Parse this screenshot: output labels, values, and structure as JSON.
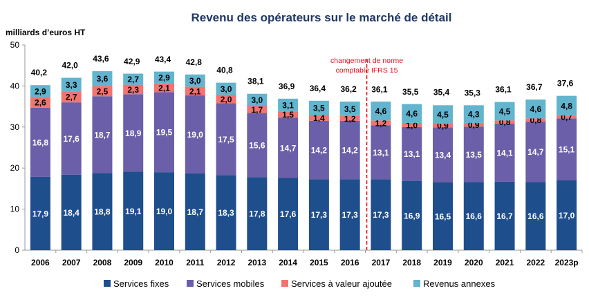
{
  "chart_data": {
    "type": "bar",
    "stacked": true,
    "title": "Revenu des opérateurs sur le marché de détail",
    "ylabel": "milliards d’euros HT",
    "ylim": [
      0,
      50
    ],
    "yticks": [
      0,
      10,
      20,
      30,
      40,
      50
    ],
    "grid": false,
    "legend_position": "bottom",
    "categories": [
      "2006",
      "2007",
      "2008",
      "2009",
      "2010",
      "2011",
      "2012",
      "2013",
      "2014",
      "2015",
      "2016",
      "2017",
      "2018",
      "2019",
      "2020",
      "2021",
      "2022",
      "2023p"
    ],
    "totals": [
      40.2,
      42.0,
      43.6,
      42.9,
      43.4,
      42.8,
      40.8,
      38.1,
      36.9,
      36.4,
      36.2,
      36.1,
      35.5,
      35.4,
      35.3,
      36.1,
      36.7,
      37.6
    ],
    "series": [
      {
        "name": "Services fixes",
        "color": "#1f4e8c",
        "label_color": "#ffffff",
        "values": [
          17.9,
          18.4,
          18.8,
          19.1,
          19.0,
          18.7,
          18.3,
          17.8,
          17.6,
          17.3,
          17.3,
          17.3,
          16.9,
          16.5,
          16.6,
          16.7,
          16.6,
          17.0
        ]
      },
      {
        "name": "Services mobiles",
        "color": "#6a5fa8",
        "label_color": "#ffffff",
        "values": [
          16.8,
          17.6,
          18.7,
          18.9,
          19.5,
          19.0,
          17.5,
          15.6,
          14.7,
          14.2,
          14.2,
          13.1,
          13.1,
          13.4,
          13.5,
          14.1,
          14.7,
          15.1
        ]
      },
      {
        "name": "Services à valeur ajoutée",
        "color": "#f07470",
        "label_color": "#000000",
        "values": [
          2.6,
          2.7,
          2.5,
          2.3,
          2.1,
          2.1,
          2.0,
          1.7,
          1.5,
          1.4,
          1.2,
          1.2,
          1.0,
          0.9,
          0.9,
          0.8,
          0.8,
          0.7
        ]
      },
      {
        "name": "Revenus annexes",
        "color": "#62b4cf",
        "label_color": "#000000",
        "values": [
          2.9,
          3.3,
          3.6,
          2.7,
          2.9,
          3.0,
          3.0,
          3.0,
          3.1,
          3.5,
          3.5,
          4.6,
          4.6,
          4.5,
          4.3,
          4.5,
          4.6,
          4.8
        ]
      }
    ],
    "annotation": {
      "text_line1": "changement de norme",
      "text_line2": "comptable IFRS 15",
      "between": [
        "2016",
        "2017"
      ],
      "color": "#e0101a"
    }
  }
}
